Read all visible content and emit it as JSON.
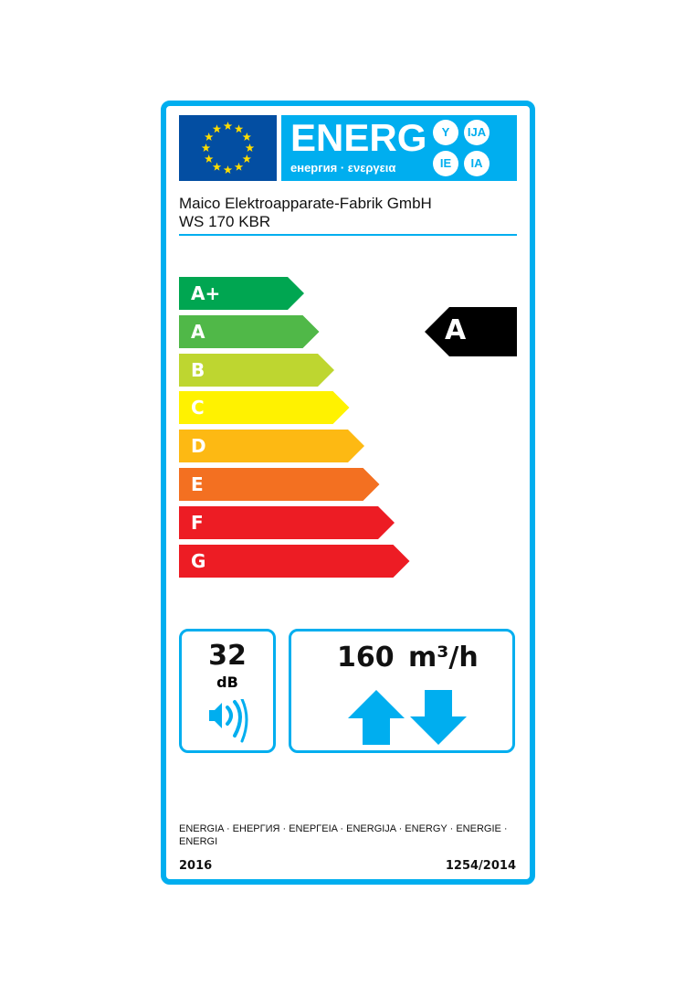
{
  "header": {
    "energy_word": "ENERG",
    "suffixes": [
      "Y",
      "IJA",
      "IE",
      "IA"
    ],
    "subtitle": "енергия · ενεργεια"
  },
  "supplier": {
    "name": "Maico Elektroapparate-Fabrik GmbH",
    "model": "WS 170 KBR"
  },
  "scale": {
    "classes": [
      {
        "label": "A+",
        "color": "#00a651"
      },
      {
        "label": "A",
        "color": "#50b848"
      },
      {
        "label": "B",
        "color": "#bed630"
      },
      {
        "label": "C",
        "color": "#fff200"
      },
      {
        "label": "D",
        "color": "#fdb913"
      },
      {
        "label": "E",
        "color": "#f37021"
      },
      {
        "label": "F",
        "color": "#ed1c24"
      },
      {
        "label": "G",
        "color": "#ed1c24"
      }
    ]
  },
  "rating": {
    "class": "A",
    "color": "#000000"
  },
  "noise": {
    "value": "32",
    "unit": "dB",
    "icon": "speaker-icon"
  },
  "airflow": {
    "value": "160",
    "unit": "m³/h",
    "icons": [
      "arrow-up-icon",
      "arrow-down-icon"
    ]
  },
  "footer": {
    "languages": "ENERGIA · ЕНЕРГИЯ · ΕΝΕΡΓΕΙΑ · ENERGIJA · ENERGY · ENERGIE · ENERGI",
    "year": "2016",
    "regulation": "1254/2014"
  },
  "accent": "#00aeef"
}
